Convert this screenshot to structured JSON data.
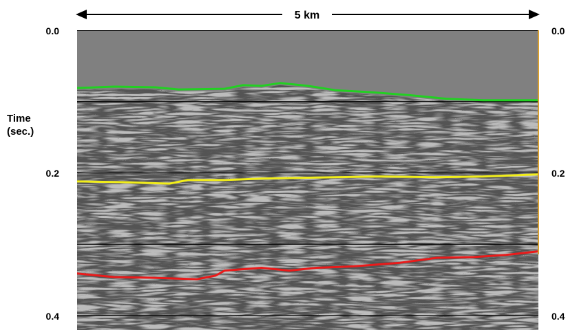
{
  "scale_bar": {
    "label": "5 km"
  },
  "axis": {
    "title_line1": "Time",
    "title_line2": "(sec.)",
    "left_ticks": [
      "0.0",
      "0.2",
      "0.4"
    ],
    "right_ticks": [
      "0.0",
      "0.2",
      "0.4"
    ],
    "time_range_sec": [
      0.0,
      0.42
    ]
  },
  "colors": {
    "water": "#808080",
    "horizon_seafloor": "#22d022",
    "horizon_middle": "#f2ee1a",
    "horizon_deep": "#ea1a1a",
    "timing_lines": "#000000"
  },
  "timing_lines_sec": [
    0.0,
    0.1,
    0.2,
    0.3,
    0.4
  ],
  "horizons": [
    {
      "id": "seafloor",
      "color_key": "horizon_seafloor",
      "points": [
        [
          0.0,
          0.081
        ],
        [
          0.08,
          0.079
        ],
        [
          0.17,
          0.08
        ],
        [
          0.22,
          0.083
        ],
        [
          0.32,
          0.082
        ],
        [
          0.36,
          0.077
        ],
        [
          0.4,
          0.078
        ],
        [
          0.44,
          0.074
        ],
        [
          0.5,
          0.078
        ],
        [
          0.56,
          0.084
        ],
        [
          0.64,
          0.087
        ],
        [
          0.72,
          0.091
        ],
        [
          0.8,
          0.096
        ],
        [
          0.88,
          0.098
        ],
        [
          0.95,
          0.098
        ],
        [
          1.0,
          0.098
        ]
      ]
    },
    {
      "id": "middle",
      "color_key": "horizon_middle",
      "points": [
        [
          0.0,
          0.212
        ],
        [
          0.1,
          0.213
        ],
        [
          0.2,
          0.215
        ],
        [
          0.24,
          0.21
        ],
        [
          0.32,
          0.21
        ],
        [
          0.4,
          0.208
        ],
        [
          0.48,
          0.207
        ],
        [
          0.56,
          0.206
        ],
        [
          0.66,
          0.205
        ],
        [
          0.78,
          0.206
        ],
        [
          0.88,
          0.205
        ],
        [
          1.0,
          0.202
        ]
      ]
    },
    {
      "id": "deep",
      "color_key": "horizon_deep",
      "points": [
        [
          0.0,
          0.341
        ],
        [
          0.08,
          0.346
        ],
        [
          0.16,
          0.347
        ],
        [
          0.26,
          0.349
        ],
        [
          0.3,
          0.344
        ],
        [
          0.32,
          0.337
        ],
        [
          0.4,
          0.333
        ],
        [
          0.46,
          0.337
        ],
        [
          0.52,
          0.333
        ],
        [
          0.6,
          0.331
        ],
        [
          0.7,
          0.326
        ],
        [
          0.78,
          0.319
        ],
        [
          0.86,
          0.318
        ],
        [
          0.93,
          0.315
        ],
        [
          1.0,
          0.31
        ]
      ]
    }
  ]
}
